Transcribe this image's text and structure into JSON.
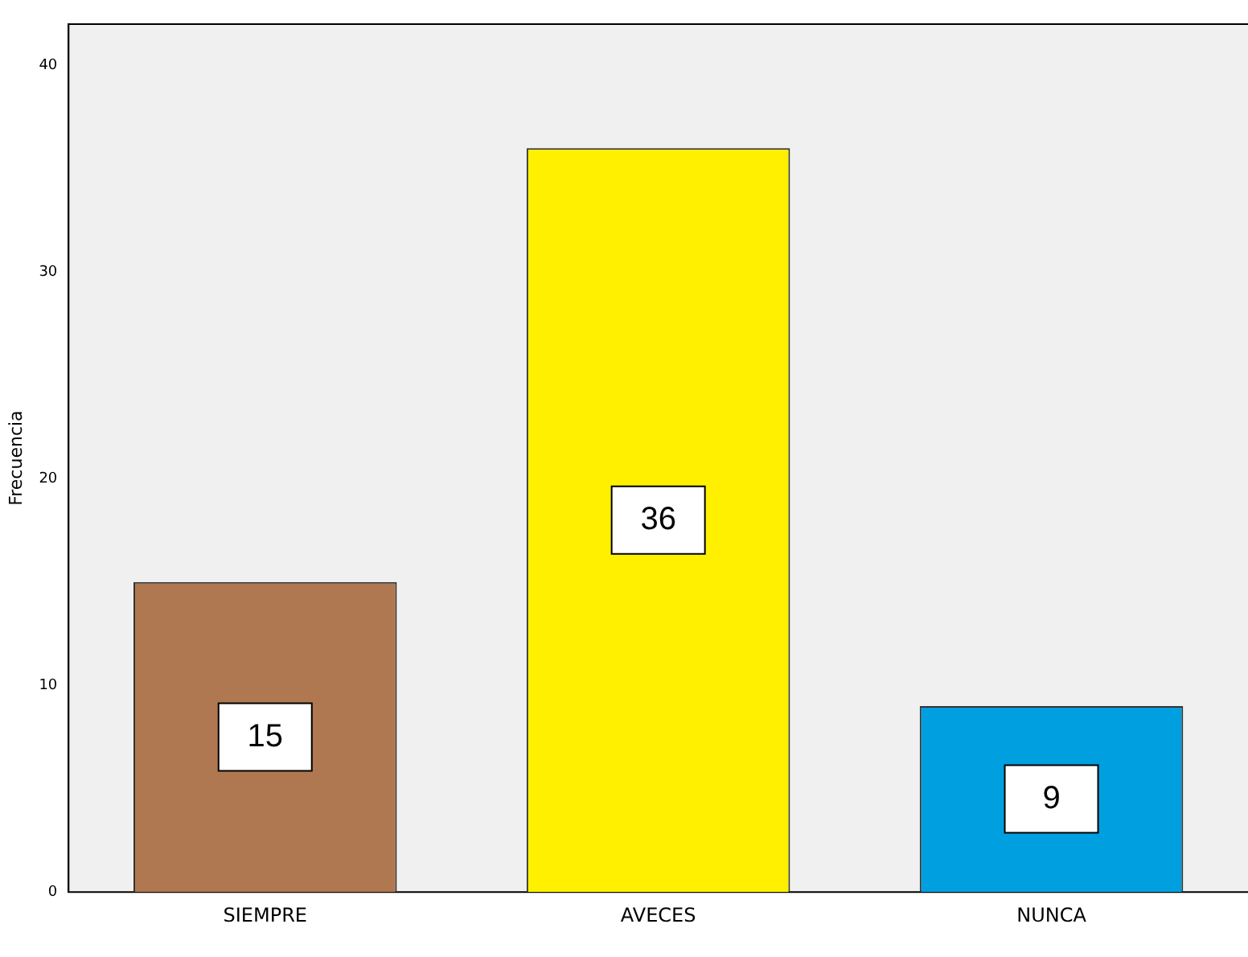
{
  "chart_data": {
    "type": "bar",
    "ylabel": "Frecuencia",
    "categories": [
      "SIEMPRE",
      "AVECES",
      "NUNCA"
    ],
    "values": [
      15,
      36,
      9
    ],
    "colors": [
      "#b07850",
      "#fff000",
      "#00a0e0"
    ],
    "ylim": [
      0,
      42
    ],
    "yticks": [
      0,
      10,
      20,
      30,
      40
    ],
    "data_labels": true,
    "grid": false,
    "legend": false
  }
}
